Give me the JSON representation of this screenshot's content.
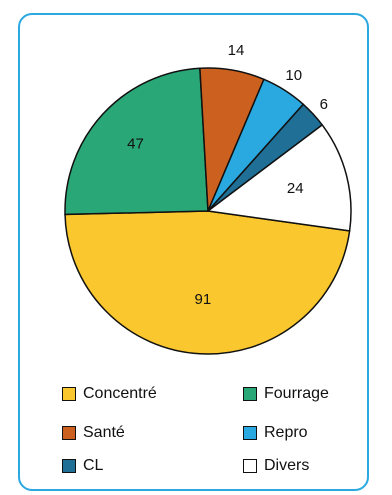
{
  "chart_data": {
    "type": "pie",
    "title": "",
    "slices": [
      {
        "label": "Concentré",
        "value": 91,
        "color": "#fbc72e"
      },
      {
        "label": "Fourrage",
        "value": 47,
        "color": "#2aa777"
      },
      {
        "label": "Santé",
        "value": 14,
        "color": "#cc611f"
      },
      {
        "label": "Repro",
        "value": 10,
        "color": "#2aa9e0"
      },
      {
        "label": "CL",
        "value": 6,
        "color": "#1f6f96"
      },
      {
        "label": "Divers",
        "value": 24,
        "color": "#ffffff"
      }
    ],
    "legend": {
      "placement": "bottom",
      "entries": [
        "Concentré",
        "Fourrage",
        "Santé",
        "Repro",
        "CL",
        "Divers"
      ]
    }
  },
  "frame": {
    "border_color": "#2aa9e0"
  }
}
